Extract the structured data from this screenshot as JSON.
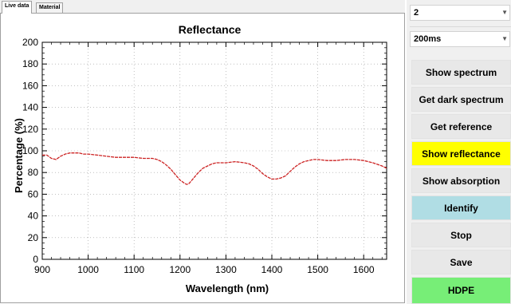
{
  "tabs": [
    {
      "label": "Live data",
      "active": true
    },
    {
      "label": "Material",
      "active": false
    }
  ],
  "controls": {
    "scan_count": "2",
    "integration_time": "200ms"
  },
  "buttons": {
    "show_spectrum": "Show spectrum",
    "get_dark_spectrum": "Get dark spectrum",
    "get_reference": "Get reference",
    "show_reflectance": "Show reflectance",
    "show_absorption": "Show absorption",
    "identify": "Identify",
    "stop": "Stop",
    "save": "Save",
    "result": "HDPE"
  },
  "colors": {
    "reflectance_active": "#ffff00",
    "identify": "#b0dde4",
    "result": "#77ee77",
    "button_default": "#e8e8e8",
    "series_line": "#cc2222"
  },
  "chart_data": {
    "type": "line",
    "title": "Reflectance",
    "xlabel": "Wavelength (nm)",
    "ylabel": "Percentage (%)",
    "xlim": [
      900,
      1650
    ],
    "ylim": [
      0,
      200
    ],
    "xticks": [
      900,
      1000,
      1100,
      1200,
      1300,
      1400,
      1500,
      1600
    ],
    "yticks": [
      0,
      20,
      40,
      60,
      80,
      100,
      120,
      140,
      160,
      180,
      200
    ],
    "grid": true,
    "series": [
      {
        "x": [
          900,
          910,
          920,
          930,
          940,
          950,
          960,
          970,
          980,
          990,
          1000,
          1020,
          1040,
          1060,
          1080,
          1100,
          1120,
          1140,
          1150,
          1160,
          1170,
          1180,
          1190,
          1200,
          1210,
          1215,
          1220,
          1230,
          1240,
          1250,
          1260,
          1270,
          1280,
          1300,
          1320,
          1340,
          1350,
          1360,
          1370,
          1380,
          1390,
          1400,
          1410,
          1420,
          1430,
          1440,
          1450,
          1460,
          1470,
          1480,
          1490,
          1500,
          1520,
          1540,
          1560,
          1580,
          1600,
          1620,
          1640,
          1650
        ],
        "y": [
          96,
          96,
          93,
          92,
          95,
          97,
          98,
          98,
          98,
          97,
          97,
          96,
          95,
          94,
          94,
          94,
          93,
          93,
          92,
          90,
          87,
          83,
          78,
          73,
          70,
          69,
          70,
          75,
          80,
          84,
          86,
          88,
          89,
          89,
          90,
          89,
          88,
          86,
          83,
          79,
          76,
          74,
          74,
          75,
          77,
          81,
          85,
          88,
          90,
          91,
          92,
          92,
          91,
          91,
          92,
          92,
          91,
          89,
          86,
          84
        ]
      }
    ]
  }
}
